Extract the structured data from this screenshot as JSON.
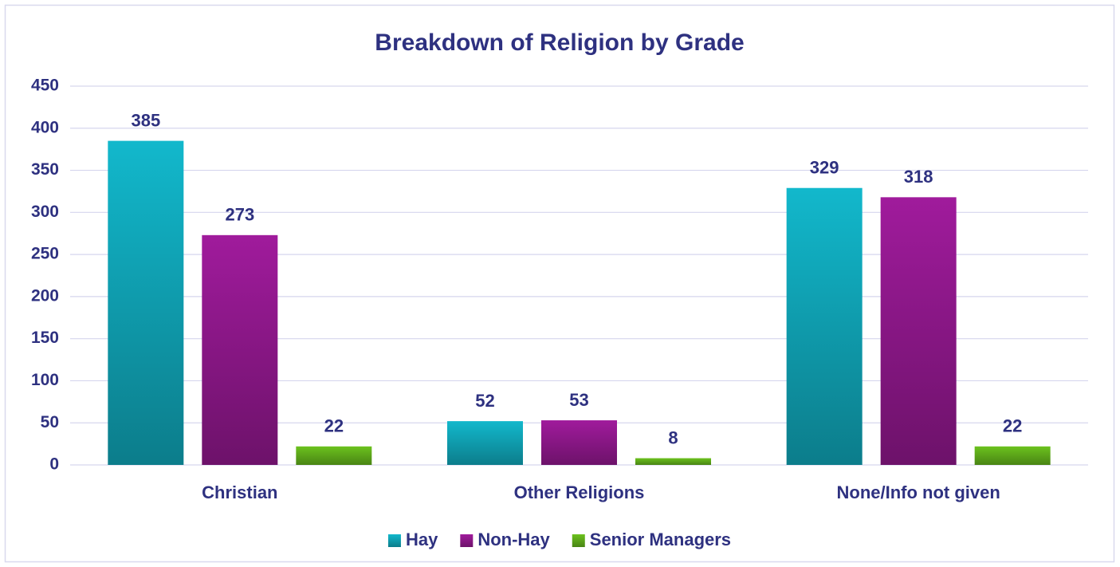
{
  "chart_data": {
    "type": "bar",
    "title": "Breakdown of Religion by Grade",
    "categories": [
      "Christian",
      "Other Religions",
      "None/Info not given"
    ],
    "series": [
      {
        "name": "Hay",
        "color": "#12b8cc",
        "values": [
          385,
          52,
          329
        ]
      },
      {
        "name": "Non-Hay",
        "color": "#a01b9c",
        "values": [
          273,
          53,
          318
        ]
      },
      {
        "name": "Senior Managers",
        "color": "#6cc21e",
        "values": [
          22,
          8,
          22
        ]
      }
    ],
    "ylim": [
      0,
      450
    ],
    "yticks": [
      0,
      50,
      100,
      150,
      200,
      250,
      300,
      350,
      400,
      450
    ],
    "grid": true,
    "legend": "bottom"
  }
}
